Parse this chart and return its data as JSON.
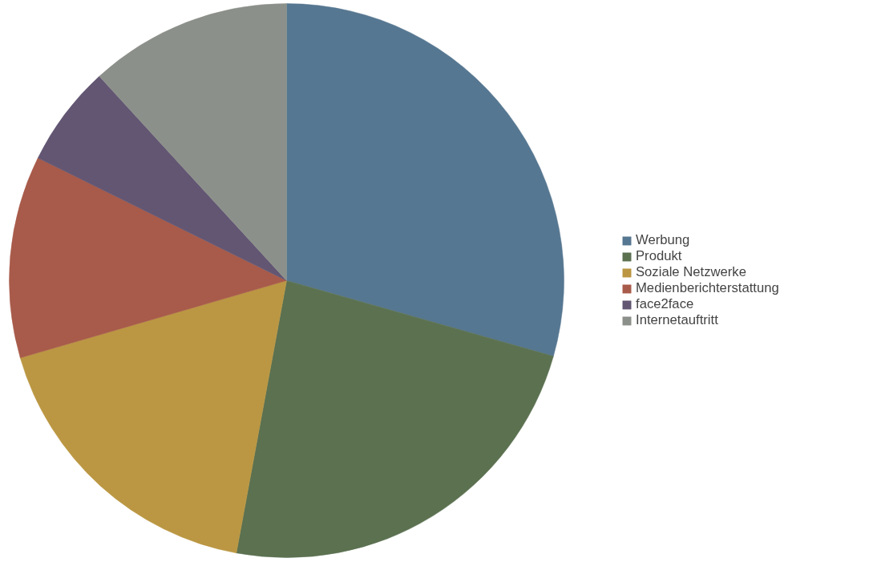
{
  "chart_data": {
    "type": "pie",
    "categories": [
      "Werbung",
      "Produkt",
      "Soziale Netzwerke",
      "Medienberichterstattung",
      "face2face",
      "Internetauftritt"
    ],
    "values": [
      29.4,
      23.5,
      17.6,
      11.8,
      5.9,
      11.8
    ],
    "colors": [
      "#567791",
      "#5b7150",
      "#bb9743",
      "#a85b4a",
      "#625673",
      "#8c908a"
    ],
    "legend": "right"
  }
}
